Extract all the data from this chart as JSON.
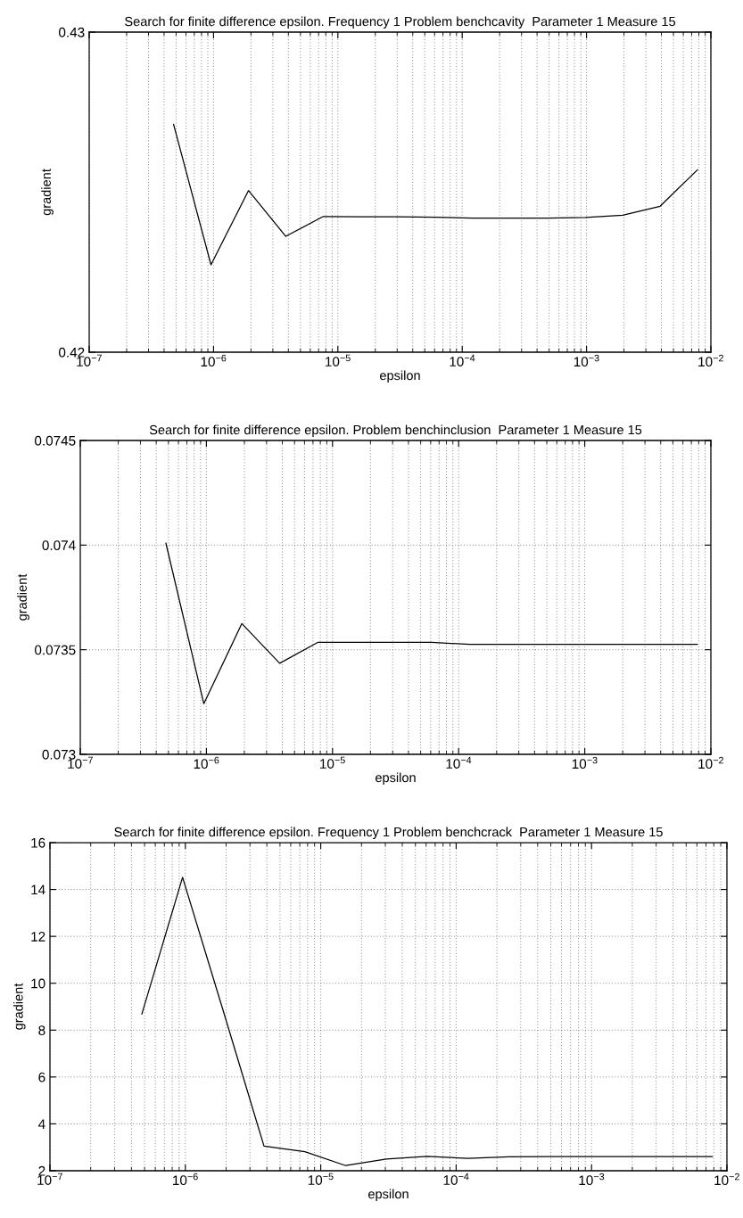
{
  "chart_data": [
    {
      "type": "line",
      "title": "Search for finite difference epsilon. Frequency 1 Problem benchcavity  Parameter 1 Measure 15",
      "xlabel": "epsilon",
      "ylabel": "gradient",
      "log": "x",
      "grid": true,
      "color": "#000000",
      "x": [
        4.77e-07,
        9.54e-07,
        1.91e-06,
        3.81e-06,
        7.63e-06,
        1.53e-05,
        3.05e-05,
        6.1e-05,
        0.000122,
        0.000244,
        0.000488,
        0.000977,
        0.001953,
        0.003906,
        0.0078125
      ],
      "values": [
        0.42712,
        0.42273,
        0.42505,
        0.42362,
        0.42424,
        0.42423,
        0.42423,
        0.42422,
        0.42419,
        0.42419,
        0.42419,
        0.42421,
        0.42428,
        0.42456,
        0.4257
      ],
      "xlim": [
        1e-07,
        0.01
      ],
      "xticks": [
        {
          "value": 1e-07,
          "label": "10$^{−7}$"
        },
        {
          "value": 1e-06,
          "label": "10$^{−6}$"
        },
        {
          "value": 1e-05,
          "label": "10$^{−5}$"
        },
        {
          "value": 0.0001,
          "label": "10$^{−4}$"
        },
        {
          "value": 0.001,
          "label": "10$^{−3}$"
        },
        {
          "value": 0.01,
          "label": "10$^{−2}$"
        }
      ],
      "ylim": [
        0.42,
        0.43
      ],
      "yticks": [
        0.42,
        0.43
      ]
    },
    {
      "type": "line",
      "title": "Search for finite difference epsilon. Problem benchinclusion  Parameter 1 Measure 15",
      "xlabel": "epsilon",
      "ylabel": "gradient",
      "log": "x",
      "grid": true,
      "color": "#000000",
      "x": [
        4.77e-07,
        9.54e-07,
        1.91e-06,
        3.81e-06,
        7.63e-06,
        1.53e-05,
        3.05e-05,
        6.1e-05,
        0.000122,
        0.000244,
        0.000488,
        0.000977,
        0.001953,
        0.003906,
        0.0078125
      ],
      "values": [
        0.07401,
        0.073242,
        0.073625,
        0.073435,
        0.073535,
        0.073535,
        0.073535,
        0.073535,
        0.073526,
        0.073526,
        0.073526,
        0.073526,
        0.073526,
        0.073526,
        0.073526
      ],
      "xlim": [
        1e-07,
        0.01
      ],
      "xticks": [
        {
          "value": 1e-07,
          "label": "10$^{−7}$"
        },
        {
          "value": 1e-06,
          "label": "10$^{−6}$"
        },
        {
          "value": 1e-05,
          "label": "10$^{−5}$"
        },
        {
          "value": 0.0001,
          "label": "10$^{−4}$"
        },
        {
          "value": 0.001,
          "label": "10$^{−3}$"
        },
        {
          "value": 0.01,
          "label": "10$^{−2}$"
        }
      ],
      "ylim": [
        0.073,
        0.0745
      ],
      "yticks": [
        0.073,
        0.0735,
        0.074,
        0.0745
      ]
    },
    {
      "type": "line",
      "title": "Search for finite difference epsilon. Frequency 1 Problem benchcrack  Parameter 1 Measure 15",
      "xlabel": "epsilon",
      "ylabel": "gradient",
      "log": "x",
      "grid": true,
      "color": "#000000",
      "x": [
        4.77e-07,
        9.54e-07,
        1.91e-06,
        3.81e-06,
        7.63e-06,
        1.53e-05,
        3.05e-05,
        6.1e-05,
        0.000122,
        0.000244,
        0.000488,
        0.000977,
        0.001953,
        0.003906,
        0.0078125
      ],
      "values": [
        8.68,
        14.52,
        8.8,
        3.05,
        2.81,
        2.22,
        2.5,
        2.61,
        2.53,
        2.59,
        2.6,
        2.6,
        2.6,
        2.6,
        2.6
      ],
      "xlim": [
        1e-07,
        0.01
      ],
      "xticks": [
        {
          "value": 1e-07,
          "label": "10$^{−7}$"
        },
        {
          "value": 1e-06,
          "label": "10$^{−6}$"
        },
        {
          "value": 1e-05,
          "label": "10$^{−5}$"
        },
        {
          "value": 0.0001,
          "label": "10$^{−4}$"
        },
        {
          "value": 0.001,
          "label": "10$^{−3}$"
        },
        {
          "value": 0.01,
          "label": "10$^{−2}$"
        }
      ],
      "ylim": [
        2,
        16
      ],
      "yticks": [
        2,
        4,
        6,
        8,
        10,
        12,
        14,
        16
      ]
    }
  ]
}
